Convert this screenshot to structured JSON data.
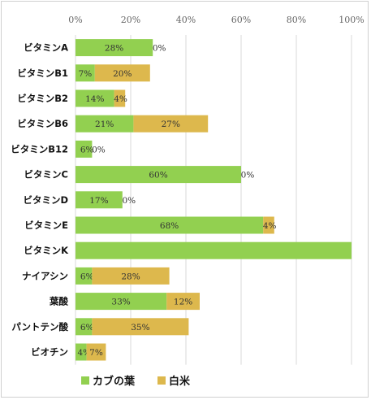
{
  "chart_data": {
    "type": "bar",
    "orientation": "horizontal",
    "stacked": true,
    "categories": [
      "ビタミンA",
      "ビタミンB1",
      "ビタミンB2",
      "ビタミンB6",
      "ビタミンB12",
      "ビタミンC",
      "ビタミンD",
      "ビタミンE",
      "ビタミンK",
      "ナイアシン",
      "葉酸",
      "パントテン酸",
      "ビオチン"
    ],
    "series": [
      {
        "name": "カブの葉",
        "color": "#92d050",
        "values": [
          28,
          7,
          14,
          21,
          6,
          60,
          17,
          68,
          100,
          6,
          33,
          6,
          4
        ],
        "labels": [
          "28%",
          "7%",
          "14%",
          "21%",
          "6%",
          "60%",
          "17%",
          "68%",
          "",
          "6%",
          "33%",
          "6%",
          "4%"
        ]
      },
      {
        "name": "白米",
        "color": "#ddb84d",
        "values": [
          0,
          20,
          4,
          27,
          0,
          0,
          0,
          4,
          0,
          28,
          12,
          35,
          7
        ],
        "labels": [
          "0%",
          "20%",
          "4%",
          "27%",
          "0%",
          "0%",
          "0%",
          "4%",
          "",
          "28%",
          "12%",
          "35%",
          "7%"
        ]
      }
    ],
    "x_ticks": [
      "0%",
      "20%",
      "40%",
      "60%",
      "80%",
      "100%"
    ],
    "xlim": [
      0,
      100
    ],
    "title": "",
    "xlabel": "",
    "ylabel": "",
    "grid": true,
    "legend_position": "bottom"
  }
}
